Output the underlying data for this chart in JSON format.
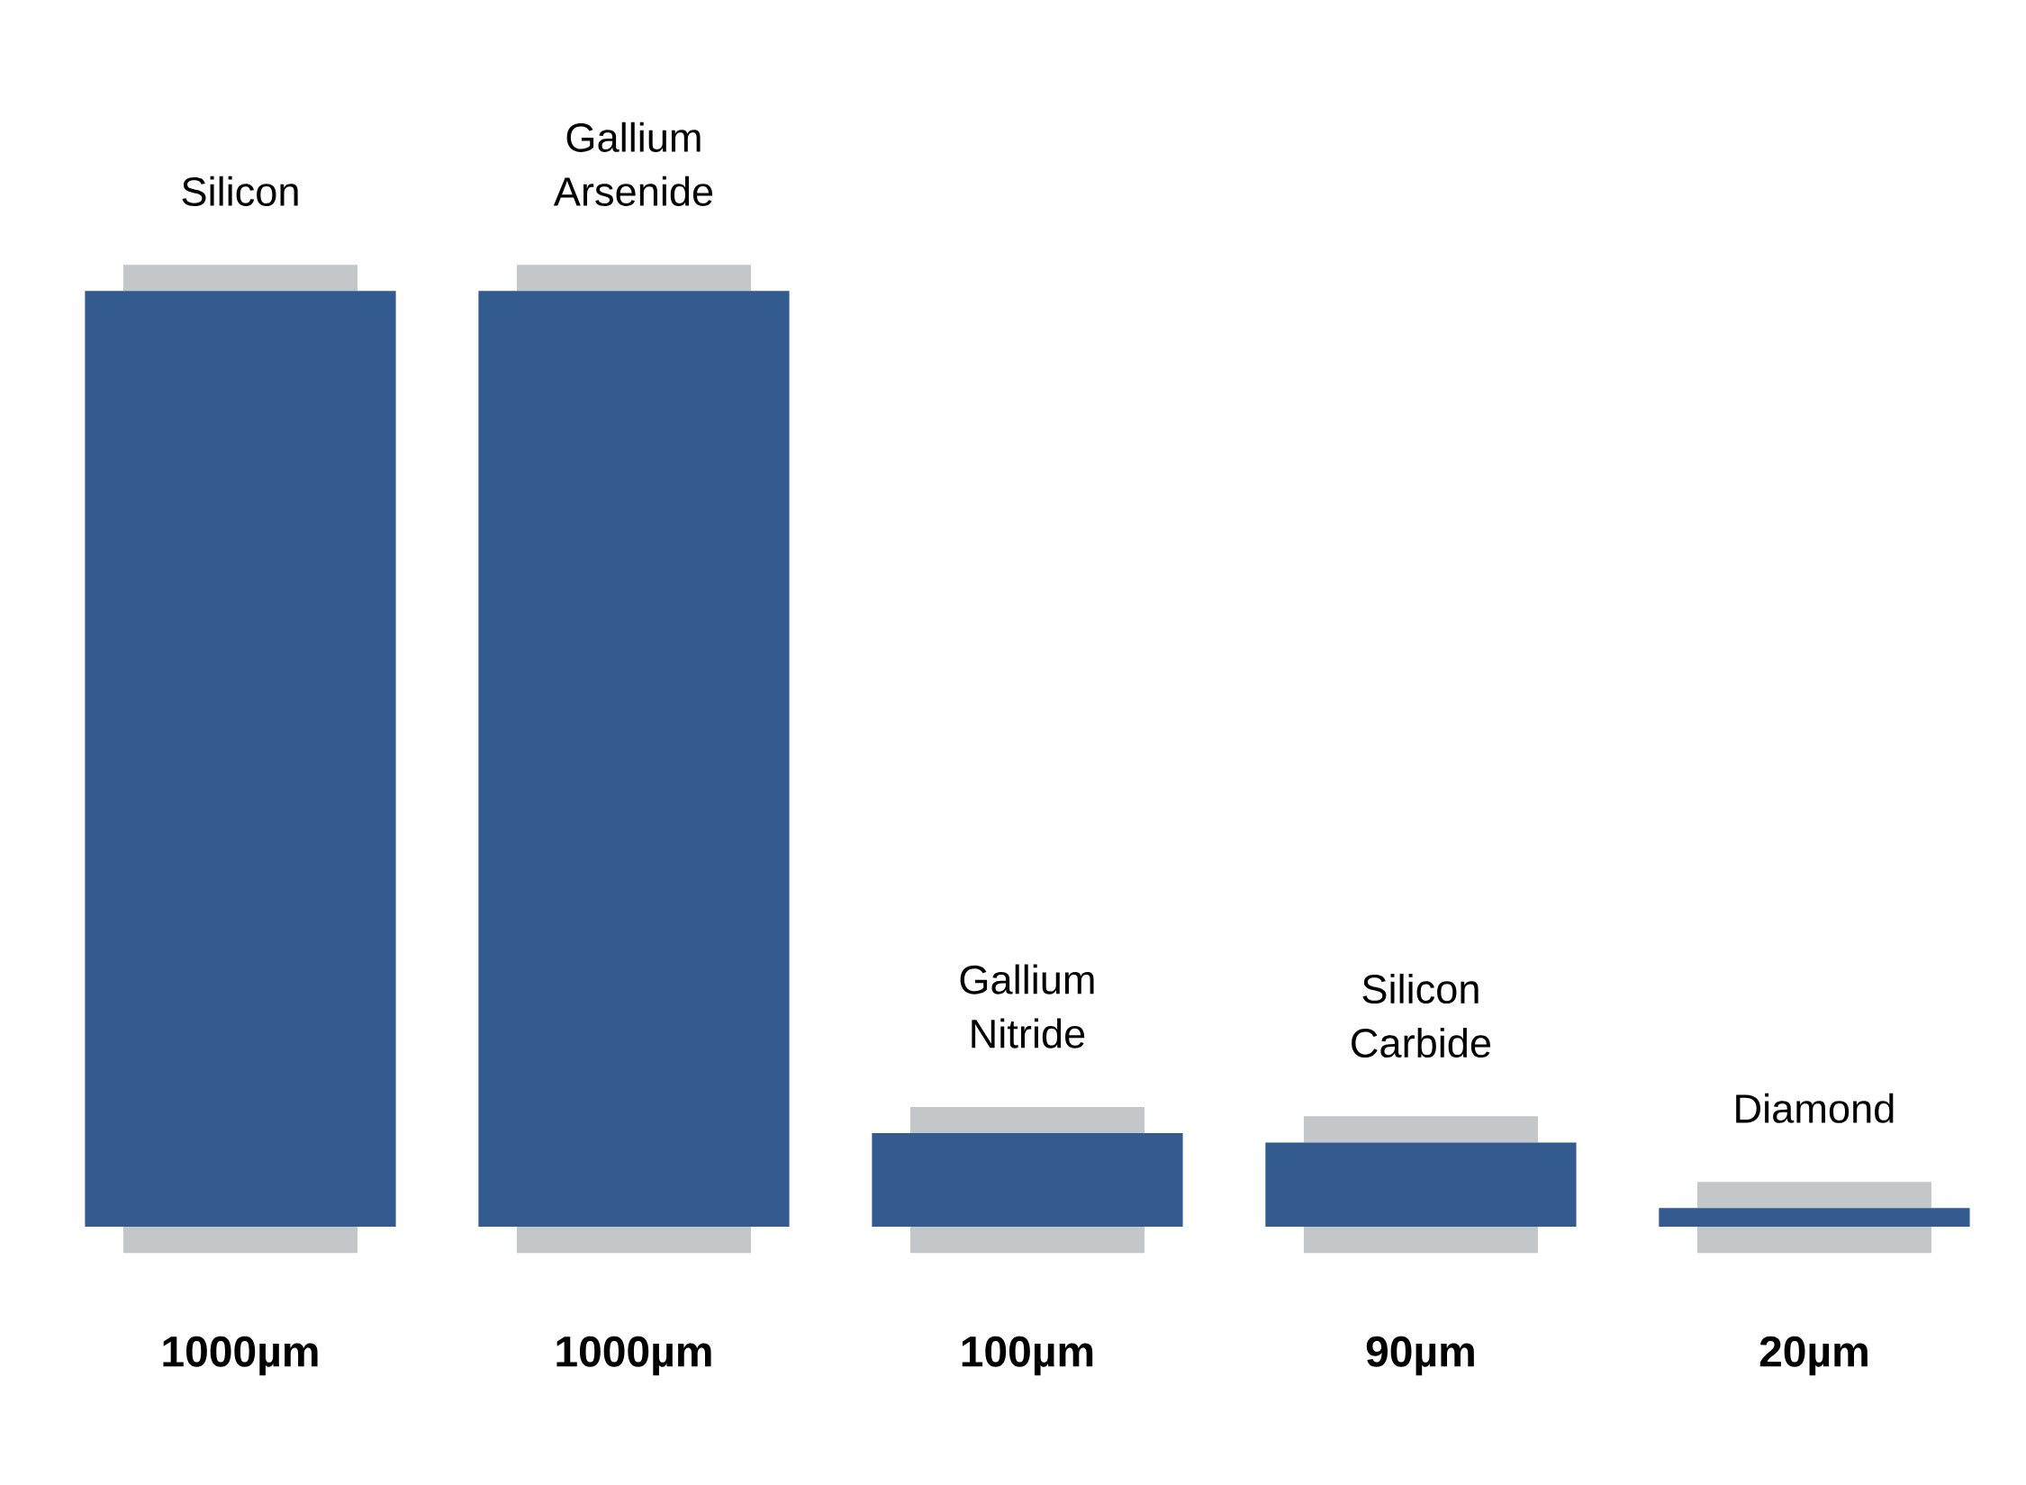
{
  "chart_data": {
    "type": "bar",
    "categories": [
      "Silicon",
      "Gallium Arsenide",
      "Gallium Nitride",
      "Silicon Carbide",
      "Diamond"
    ],
    "values": [
      1000,
      1000,
      100,
      90,
      20
    ],
    "value_labels": [
      "1000µm",
      "1000µm",
      "100µm",
      "90µm",
      "20µm"
    ],
    "color": "#345b8f"
  }
}
